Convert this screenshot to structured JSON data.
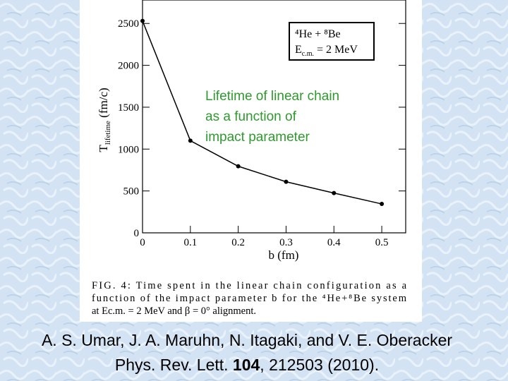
{
  "chart_data": {
    "type": "line",
    "x": [
      0,
      0.1,
      0.2,
      0.3,
      0.4,
      0.5
    ],
    "values": [
      2530,
      1100,
      795,
      610,
      475,
      345
    ],
    "color": "#000000",
    "xlim": [
      0,
      0.55
    ],
    "xticks": [
      0,
      0.1,
      0.2,
      0.3,
      0.4,
      0.5
    ],
    "ylim": [
      0,
      2780
    ],
    "yticks": [
      0,
      500,
      1000,
      1500,
      2000,
      2500
    ],
    "xlabel": "b (fm)",
    "ylabel": {
      "main": "T",
      "sub": "lifetime",
      "unit": " (fm/c)"
    },
    "legend": {
      "line1": "⁴He + ⁸Be",
      "line2": {
        "main": "E",
        "sub": "c.m.",
        "rest": " = 2 MeV"
      }
    },
    "annotation": [
      "Lifetime of linear chain",
      "as a function of",
      "impact parameter"
    ],
    "caption": [
      "FIG. 4:  Time spent in the linear chain configuration as a",
      "function of the impact parameter b for the ⁴He+⁸Be system",
      "at Ec.m. = 2 MeV and β = 0° alignment."
    ]
  },
  "citation": {
    "authors": "A. S. Umar, J. A. Maruhn, N. Itagaki, and V. E. Oberacker",
    "journal": "Phys. Rev. Lett. ",
    "volume": "104",
    "rest": ", 212503 (2010)."
  }
}
